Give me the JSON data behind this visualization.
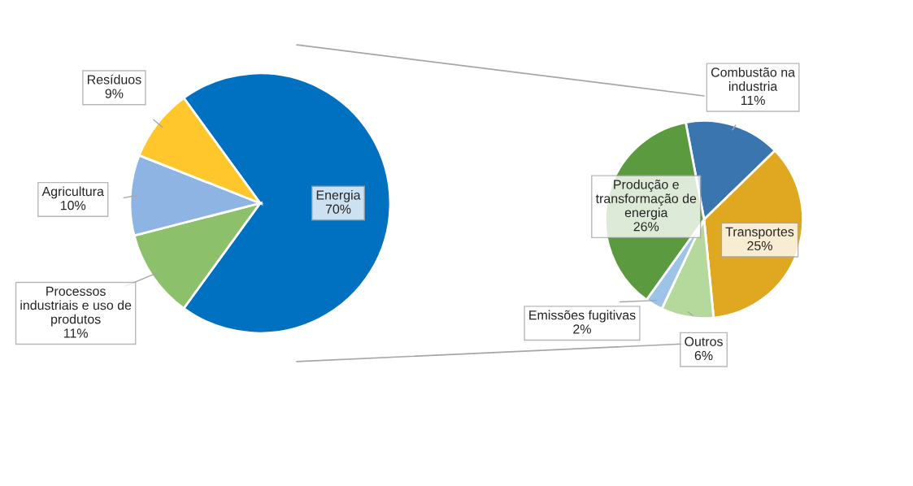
{
  "chart_data": [
    {
      "type": "pie",
      "value_labels": [
        "70%",
        "11%",
        "10%",
        "9%"
      ],
      "categories": [
        "Energia",
        "Processos\nindustriais e uso de\nprodutos",
        "Agricultura",
        "Resíduos"
      ],
      "values": [
        70,
        11,
        10,
        9
      ],
      "colors": [
        "#0070c0",
        "#8cc06a",
        "#8db4e2",
        "#ffc72c"
      ]
    },
    {
      "type": "pie",
      "value_labels": [
        "11%",
        "25%",
        "6%",
        "2%",
        "26%"
      ],
      "categories": [
        "Combustão na\nindustria",
        "Transportes",
        "Outros",
        "Emissões fugitivas",
        "Produção e\ntransformação de\nenergia"
      ],
      "values": [
        11,
        25,
        6,
        2,
        26
      ],
      "colors": [
        "#3a75b0",
        "#e0a820",
        "#b5d99c",
        "#9dc3e6",
        "#5b9a3f"
      ]
    }
  ]
}
